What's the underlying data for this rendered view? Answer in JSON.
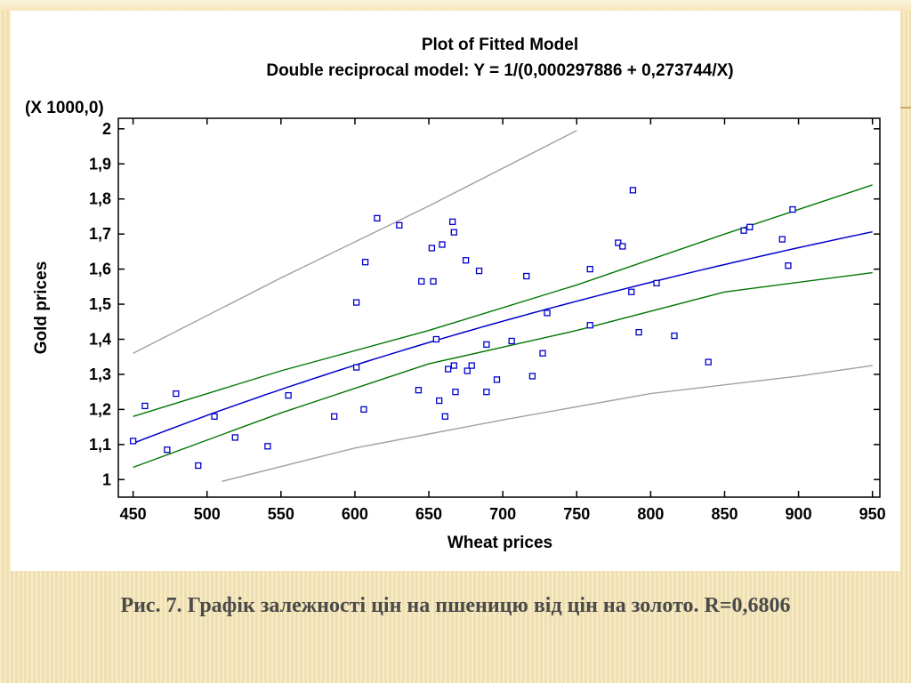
{
  "caption": "Рис. 7.  Графік залежності цін на пшеницю від цін на золото. R=0,6806",
  "chart_data": {
    "type": "scatter",
    "title": "Plot of Fitted Model",
    "subtitle": "Double reciprocal model: Y = 1/(0,000297886 + 0,273744/X)",
    "xlabel": "Wheat prices",
    "ylabel": "Gold prices",
    "y_multiplier_label": "(X 1000,0)",
    "xlim": [
      440,
      955
    ],
    "ylim": [
      0.95,
      2.03
    ],
    "x_ticks": [
      450,
      500,
      550,
      600,
      650,
      700,
      750,
      800,
      850,
      900,
      950
    ],
    "x_tick_labels": [
      "450",
      "500",
      "550",
      "600",
      "650",
      "700",
      "750",
      "800",
      "850",
      "900",
      "950"
    ],
    "y_ticks": [
      1.0,
      1.1,
      1.2,
      1.3,
      1.4,
      1.5,
      1.6,
      1.7,
      1.8,
      1.9,
      2.0
    ],
    "y_tick_labels": [
      "1",
      "1,1",
      "1,2",
      "1,3",
      "1,4",
      "1,5",
      "1,6",
      "1,7",
      "1,8",
      "1,9",
      "2"
    ],
    "grid": false,
    "colors": {
      "points": "#0000cc",
      "fit": "#0000cc",
      "confidence": "#007700",
      "prediction": "#a0a0a0"
    },
    "points": [
      [
        450,
        1.11
      ],
      [
        458,
        1.21
      ],
      [
        473,
        1.085
      ],
      [
        479,
        1.245
      ],
      [
        494,
        1.04
      ],
      [
        505,
        1.18
      ],
      [
        519,
        1.12
      ],
      [
        541,
        1.095
      ],
      [
        555,
        1.24
      ],
      [
        586,
        1.18
      ],
      [
        601,
        1.505
      ],
      [
        601,
        1.32
      ],
      [
        606,
        1.2
      ],
      [
        607,
        1.62
      ],
      [
        615,
        1.745
      ],
      [
        630,
        1.725
      ],
      [
        643,
        1.255
      ],
      [
        645,
        1.565
      ],
      [
        652,
        1.66
      ],
      [
        653,
        1.565
      ],
      [
        655,
        1.4
      ],
      [
        657,
        1.225
      ],
      [
        659,
        1.67
      ],
      [
        661,
        1.18
      ],
      [
        663,
        1.315
      ],
      [
        666,
        1.735
      ],
      [
        667,
        1.325
      ],
      [
        667,
        1.705
      ],
      [
        668,
        1.25
      ],
      [
        675,
        1.625
      ],
      [
        676,
        1.31
      ],
      [
        679,
        1.325
      ],
      [
        684,
        1.595
      ],
      [
        689,
        1.385
      ],
      [
        689,
        1.25
      ],
      [
        696,
        1.285
      ],
      [
        706,
        1.395
      ],
      [
        716,
        1.58
      ],
      [
        720,
        1.295
      ],
      [
        727,
        1.36
      ],
      [
        730,
        1.475
      ],
      [
        759,
        1.6
      ],
      [
        759,
        1.44
      ],
      [
        778,
        1.675
      ],
      [
        781,
        1.665
      ],
      [
        787,
        1.535
      ],
      [
        788,
        1.825
      ],
      [
        792,
        1.42
      ],
      [
        804,
        1.56
      ],
      [
        816,
        1.41
      ],
      [
        839,
        1.335
      ],
      [
        863,
        1.71
      ],
      [
        867,
        1.72
      ],
      [
        889,
        1.685
      ],
      [
        893,
        1.61
      ],
      [
        896,
        1.77
      ]
    ],
    "fit": {
      "a": 0.000297886,
      "b": 0.273744,
      "x_from": 450,
      "x_to": 950
    },
    "confidence_band": {
      "upper": [
        [
          450,
          1.18
        ],
        [
          550,
          1.31
        ],
        [
          650,
          1.425
        ],
        [
          750,
          1.555
        ],
        [
          850,
          1.7
        ],
        [
          950,
          1.84
        ]
      ],
      "lower": [
        [
          450,
          1.035
        ],
        [
          550,
          1.19
        ],
        [
          650,
          1.33
        ],
        [
          750,
          1.425
        ],
        [
          850,
          1.535
        ],
        [
          950,
          1.59
        ]
      ]
    },
    "prediction_band": {
      "upper": [
        [
          450,
          1.36
        ],
        [
          550,
          1.575
        ],
        [
          650,
          1.78
        ],
        [
          750,
          1.995
        ]
      ],
      "lower": [
        [
          510,
          0.995
        ],
        [
          600,
          1.09
        ],
        [
          700,
          1.17
        ],
        [
          800,
          1.245
        ],
        [
          900,
          1.295
        ],
        [
          950,
          1.325
        ]
      ]
    }
  }
}
